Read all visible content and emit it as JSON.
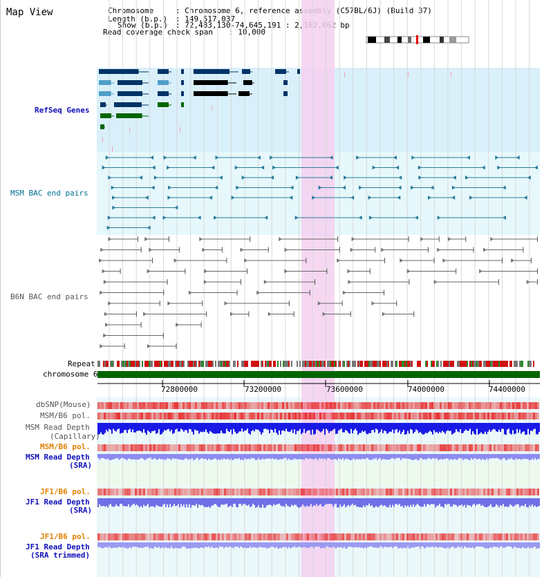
{
  "page": {
    "title": "Map View"
  },
  "info": {
    "chromosome_key": "Chromosome",
    "chromosome_val": ": Chromosome 6, reference assembly (C57BL/6J) (Build 37)",
    "length_key": "Length (b.p.)",
    "length_val": ": 149,517,037",
    "show_key": "Show (b.p.)",
    "show_val": ": 72,483,130-74,645,191 : 2,162,062 bp",
    "coverage_key": "Read coverage check span",
    "coverage_val": ": 10,000"
  },
  "tracks": {
    "refseq": "RefSeq Genes",
    "msm_bac": "MSM BAC end pairs",
    "b6n_bac": "B6N BAC end pairs",
    "repeat": "Repeat",
    "chromosome": "chromosome 6",
    "dbsnp": "dbSNP(Mouse)",
    "msm_pol_1": "MSM/B6 pol.",
    "msm_depth_cap_1": "MSM Read Depth",
    "msm_depth_cap_2": "(Capillary)",
    "msm_pol_2": "MSM/B6 pol.",
    "msm_depth_sra_1": "MSM Read Depth",
    "msm_depth_sra_2": "(SRA)",
    "jf1_pol_1": "JF1/B6 pol.",
    "jf1_depth_1": "JF1 Read Depth",
    "jf1_depth_2": "(SRA)",
    "jf1_pol_2": "JF1/B6 pol.",
    "jf1_trim_1": "JF1 Read Depth",
    "jf1_trim_2": "(SRA trimmed)"
  },
  "axis": {
    "ticks": [
      "72800000",
      "73200000",
      "73600000",
      "74000000",
      "74400000"
    ]
  },
  "colors": {
    "refseq_bg": "#d9f0fb",
    "msm_bg": "#e6f8fb",
    "highlight": "#f5d0f0",
    "chromosome_bar": "#006400",
    "depth_blue": "#1a1ae6",
    "depth_light": "#8c8cf0",
    "pol_red": "#e83030"
  }
}
